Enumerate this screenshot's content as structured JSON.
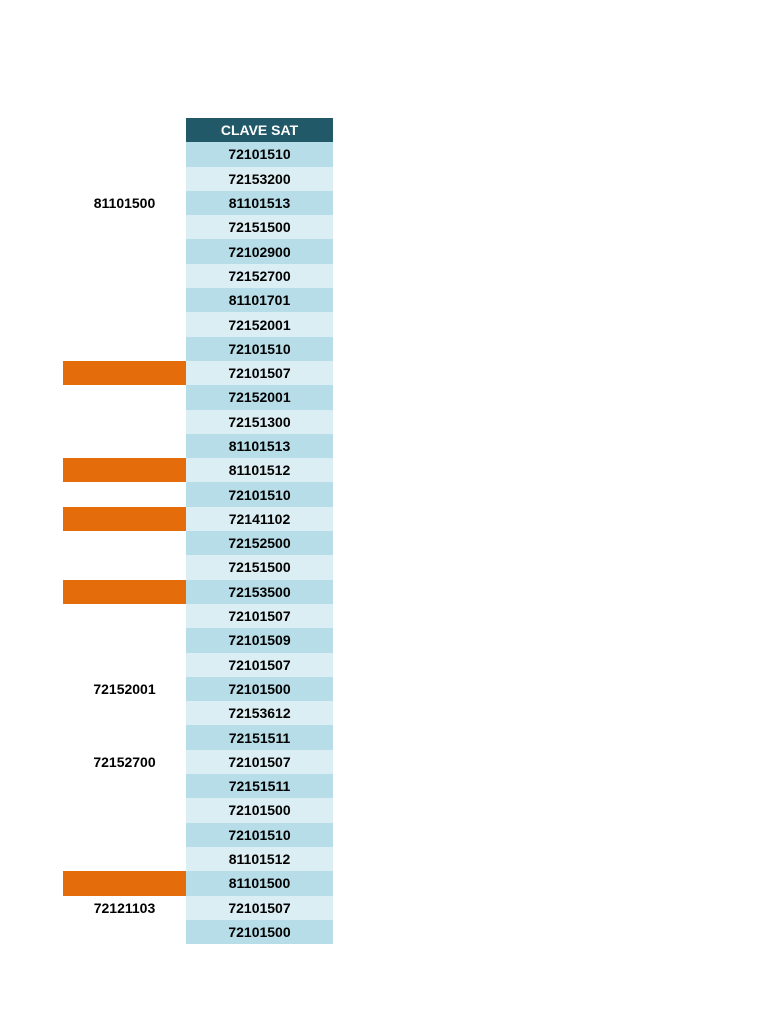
{
  "table": {
    "header": "CLAVE SAT",
    "colors": {
      "header_bg": "#215968",
      "header_text": "#ffffff",
      "row_dark": "#b7dde8",
      "row_light": "#dbeef3",
      "highlight": "#e46c0a"
    },
    "rows": [
      {
        "left": "",
        "highlight": false,
        "clave": "72101510"
      },
      {
        "left": "",
        "highlight": false,
        "clave": "72153200"
      },
      {
        "left": "81101500",
        "highlight": false,
        "clave": "81101513"
      },
      {
        "left": "",
        "highlight": false,
        "clave": "72151500"
      },
      {
        "left": "",
        "highlight": false,
        "clave": "72102900"
      },
      {
        "left": "",
        "highlight": false,
        "clave": "72152700"
      },
      {
        "left": "",
        "highlight": false,
        "clave": "81101701"
      },
      {
        "left": "",
        "highlight": false,
        "clave": "72152001"
      },
      {
        "left": "",
        "highlight": false,
        "clave": "72101510"
      },
      {
        "left": "",
        "highlight": true,
        "clave": "72101507"
      },
      {
        "left": "",
        "highlight": false,
        "clave": "72152001"
      },
      {
        "left": "",
        "highlight": false,
        "clave": "72151300"
      },
      {
        "left": "",
        "highlight": false,
        "clave": "81101513"
      },
      {
        "left": "",
        "highlight": true,
        "clave": "81101512"
      },
      {
        "left": "",
        "highlight": false,
        "clave": "72101510"
      },
      {
        "left": "",
        "highlight": true,
        "clave": "72141102"
      },
      {
        "left": "",
        "highlight": false,
        "clave": "72152500"
      },
      {
        "left": "",
        "highlight": false,
        "clave": "72151500"
      },
      {
        "left": "",
        "highlight": true,
        "clave": "72153500"
      },
      {
        "left": "",
        "highlight": false,
        "clave": "72101507"
      },
      {
        "left": "",
        "highlight": false,
        "clave": "72101509"
      },
      {
        "left": "",
        "highlight": false,
        "clave": "72101507"
      },
      {
        "left": "72152001",
        "highlight": false,
        "clave": "72101500"
      },
      {
        "left": "",
        "highlight": false,
        "clave": "72153612"
      },
      {
        "left": "",
        "highlight": false,
        "clave": "72151511"
      },
      {
        "left": "72152700",
        "highlight": false,
        "clave": "72101507"
      },
      {
        "left": "",
        "highlight": false,
        "clave": "72151511"
      },
      {
        "left": "",
        "highlight": false,
        "clave": "72101500"
      },
      {
        "left": "",
        "highlight": false,
        "clave": "72101510"
      },
      {
        "left": "",
        "highlight": false,
        "clave": "81101512"
      },
      {
        "left": "",
        "highlight": true,
        "clave": "81101500"
      },
      {
        "left": "72121103",
        "highlight": false,
        "clave": "72101507"
      },
      {
        "left": "",
        "highlight": false,
        "clave": "72101500"
      }
    ]
  }
}
